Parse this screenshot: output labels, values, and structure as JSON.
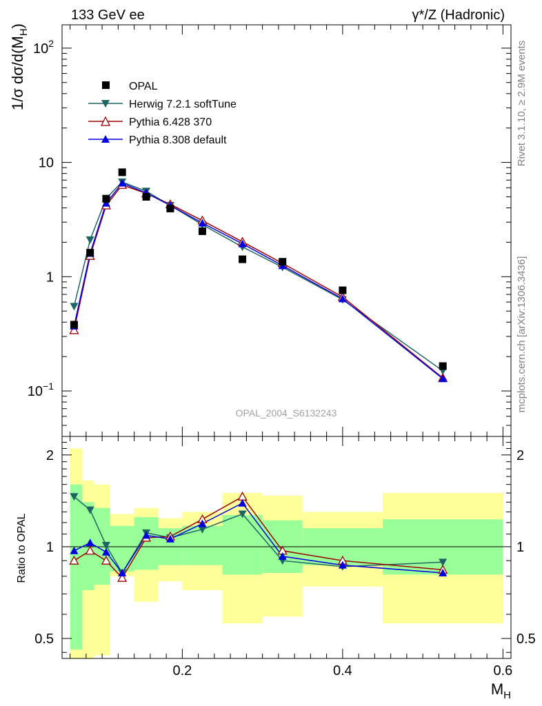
{
  "header": {
    "left": "133 GeV ee",
    "right": "γ*/Z (Hadronic)"
  },
  "side_labels": {
    "rivet": "Rivet 3.1.10, ≥ 2.9M events",
    "mcplots": "mcplots.cern.ch [arXiv:1306.3436]"
  },
  "analysis_tag": "OPAL_2004_S6132243",
  "colors": {
    "data": "#000000",
    "herwig": "#1e6464",
    "pythia6": "#9b0000",
    "pythia8": "#0000e0",
    "band_inner": "#99ff99",
    "band_outer": "#ffff99"
  },
  "chart_data": [
    {
      "type": "line",
      "panel": "main",
      "ylabel": "1/σ dσ/d(M_H)",
      "xlabel": "",
      "yscale": "log",
      "ylim": [
        0.04,
        160
      ],
      "xlim": [
        0.05,
        0.61
      ],
      "y_ticks": [
        {
          "value": 100,
          "base": "10",
          "exp": "2"
        },
        {
          "value": 10,
          "base": "10",
          "exp": ""
        },
        {
          "value": 1,
          "base": "1",
          "exp": ""
        },
        {
          "value": 0.1,
          "base": "10",
          "exp": "−1"
        }
      ],
      "legend_position": "top-left",
      "x": [
        0.065,
        0.085,
        0.105,
        0.125,
        0.155,
        0.185,
        0.225,
        0.275,
        0.325,
        0.4,
        0.525
      ],
      "series": [
        {
          "name": "OPAL",
          "key": "data",
          "marker": "square",
          "values": [
            0.38,
            1.62,
            4.8,
            8.2,
            5.0,
            3.95,
            2.5,
            1.42,
            1.35,
            0.76,
            0.165
          ]
        },
        {
          "name": "Herwig 7.2.1 softTune",
          "key": "herwig",
          "marker": "triangle-down",
          "values": [
            0.55,
            2.1,
            4.85,
            6.75,
            5.6,
            4.2,
            2.85,
            1.82,
            1.21,
            0.63,
            0.15
          ]
        },
        {
          "name": "Pythia 6.428 370",
          "key": "pythia6",
          "marker": "triangle-up-open",
          "values": [
            0.34,
            1.52,
            4.2,
            6.35,
            5.35,
            4.3,
            3.1,
            2.02,
            1.31,
            0.665,
            0.13
          ]
        },
        {
          "name": "Pythia 8.308 default",
          "key": "pythia8",
          "marker": "triangle-up",
          "values": [
            0.37,
            1.6,
            4.4,
            6.6,
            5.4,
            4.2,
            2.95,
            1.94,
            1.25,
            0.64,
            0.128
          ]
        }
      ]
    },
    {
      "type": "line",
      "panel": "ratio",
      "ylabel": "Ratio to OPAL",
      "xlabel": "M_H",
      "yscale": "log",
      "ylim": [
        0.43,
        2.3
      ],
      "xlim": [
        0.05,
        0.61
      ],
      "y_ticks": [
        {
          "value": 2,
          "label": "2"
        },
        {
          "value": 1,
          "label": "1"
        },
        {
          "value": 0.5,
          "label": "0.5"
        }
      ],
      "x_ticks": [
        {
          "value": 0.2,
          "label": "0.2"
        },
        {
          "value": 0.4,
          "label": "0.4"
        },
        {
          "value": 0.6,
          "label": "0.6"
        }
      ],
      "bins": [
        {
          "lo": 0.06,
          "hi": 0.075,
          "inner": [
            0.46,
            1.6
          ],
          "outer": [
            0.43,
            2.1
          ]
        },
        {
          "lo": 0.075,
          "hi": 0.09,
          "inner": [
            0.72,
            1.4
          ],
          "outer": [
            0.43,
            1.65
          ]
        },
        {
          "lo": 0.09,
          "hi": 0.11,
          "inner": [
            0.75,
            1.34
          ],
          "outer": [
            0.44,
            1.6
          ]
        },
        {
          "lo": 0.11,
          "hi": 0.14,
          "inner": [
            0.83,
            1.17
          ],
          "outer": [
            0.8,
            1.28
          ]
        },
        {
          "lo": 0.14,
          "hi": 0.17,
          "inner": [
            0.84,
            1.25
          ],
          "outer": [
            0.66,
            1.34
          ]
        },
        {
          "lo": 0.17,
          "hi": 0.2,
          "inner": [
            0.87,
            1.15
          ],
          "outer": [
            0.77,
            1.24
          ]
        },
        {
          "lo": 0.2,
          "hi": 0.25,
          "inner": [
            0.87,
            1.17
          ],
          "outer": [
            0.72,
            1.3
          ]
        },
        {
          "lo": 0.25,
          "hi": 0.3,
          "inner": [
            0.81,
            1.27
          ],
          "outer": [
            0.56,
            1.5
          ]
        },
        {
          "lo": 0.3,
          "hi": 0.35,
          "inner": [
            0.82,
            1.22
          ],
          "outer": [
            0.59,
            1.47
          ]
        },
        {
          "lo": 0.35,
          "hi": 0.45,
          "inner": [
            0.87,
            1.15
          ],
          "outer": [
            0.74,
            1.3
          ]
        },
        {
          "lo": 0.45,
          "hi": 0.6,
          "inner": [
            0.81,
            1.23
          ],
          "outer": [
            0.56,
            1.5
          ]
        }
      ],
      "x": [
        0.065,
        0.085,
        0.105,
        0.125,
        0.155,
        0.185,
        0.225,
        0.275,
        0.325,
        0.4,
        0.525
      ],
      "series": [
        {
          "name": "Herwig 7.2.1 softTune",
          "key": "herwig",
          "marker": "triangle-down",
          "values": [
            1.46,
            1.32,
            1.01,
            0.82,
            1.11,
            1.07,
            1.14,
            1.28,
            0.9,
            0.86,
            0.89
          ]
        },
        {
          "name": "Pythia 6.428 370",
          "key": "pythia6",
          "marker": "triangle-up-open",
          "values": [
            0.9,
            0.97,
            0.9,
            0.79,
            1.07,
            1.08,
            1.23,
            1.46,
            0.97,
            0.9,
            0.84
          ]
        },
        {
          "name": "Pythia 8.308 default",
          "key": "pythia8",
          "marker": "triangle-up",
          "values": [
            0.97,
            1.03,
            0.96,
            0.82,
            1.09,
            1.06,
            1.19,
            1.39,
            0.93,
            0.87,
            0.82
          ]
        }
      ]
    }
  ]
}
